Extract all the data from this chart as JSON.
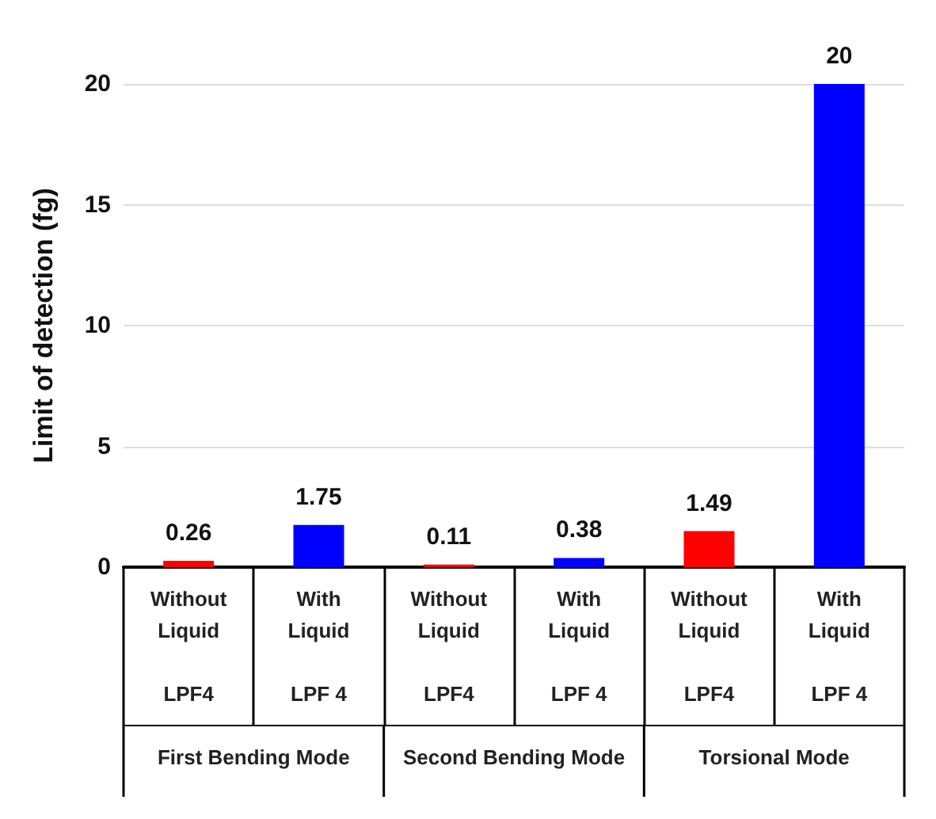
{
  "chart_data": {
    "type": "bar",
    "ylabel": "Limit of detection (fg)",
    "categories": [
      "Without Liquid\nLPF4",
      "With Liquid\nLPF 4",
      "Without Liquid\nLPF4",
      "With Liquid\nLPF 4",
      "Without Liquid\nLPF4",
      "With Liquid\nLPF 4"
    ],
    "values": [
      0.26,
      1.75,
      0.11,
      0.38,
      1.49,
      20
    ],
    "colors": [
      "#ff0000",
      "#0000ff",
      "#ff0000",
      "#0000ff",
      "#ff0000",
      "#0000ff"
    ],
    "annotations": [
      "First Bending Mode",
      "Second Bending Mode",
      "Torsional Mode"
    ],
    "ylim": [
      0,
      20
    ],
    "yticks": [
      0,
      5,
      10,
      15,
      20
    ],
    "grid": "y",
    "data_labels": true
  }
}
